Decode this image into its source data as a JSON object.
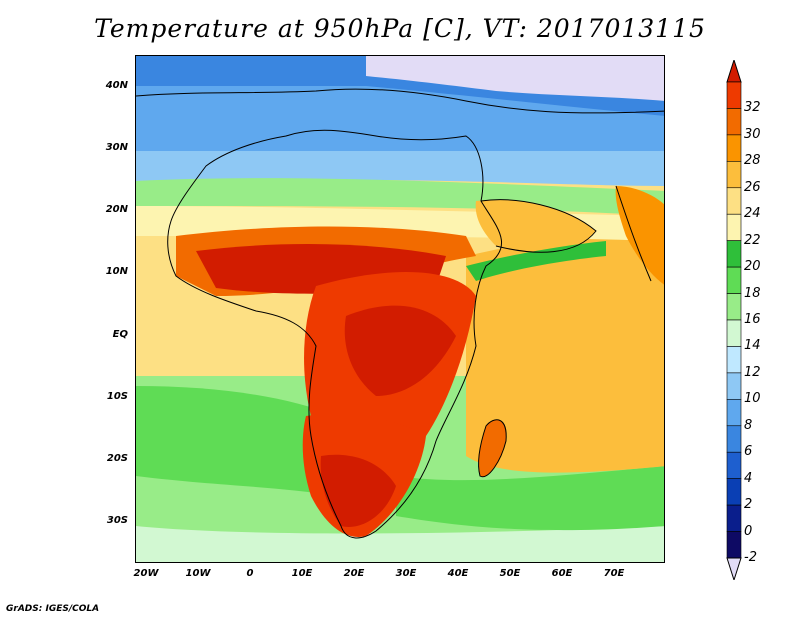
{
  "title": "Temperature at 950hPa [C], VT: 2017013115",
  "footer": "GrADS: IGES/COLA",
  "map": {
    "lat_labels": [
      "40N",
      "30N",
      "20N",
      "10N",
      "EQ",
      "10S",
      "20S",
      "30S"
    ],
    "lon_labels": [
      "20W",
      "10W",
      "0",
      "10E",
      "20E",
      "30E",
      "40E",
      "50E",
      "60E",
      "70E"
    ],
    "lat_range": [
      -37,
      45
    ],
    "lon_range": [
      -22,
      80
    ]
  },
  "colorbar": {
    "levels": [
      "32",
      "30",
      "28",
      "26",
      "24",
      "22",
      "20",
      "18",
      "16",
      "14",
      "12",
      "10",
      "8",
      "6",
      "4",
      "2",
      "0",
      "-2"
    ],
    "colors": [
      "#d21c00",
      "#ee3a00",
      "#f26b00",
      "#fa9400",
      "#fcbe3c",
      "#fde084",
      "#fdf4b0",
      "#2fbf3a",
      "#5fdc55",
      "#98ec88",
      "#d2f8d2",
      "#bfe8ff",
      "#8ec8f4",
      "#5fa8ee",
      "#3a86e0",
      "#1e5fcf",
      "#0a3fb4",
      "#0a1e8c",
      "#0e0a64",
      "#e2dcf6"
    ]
  }
}
